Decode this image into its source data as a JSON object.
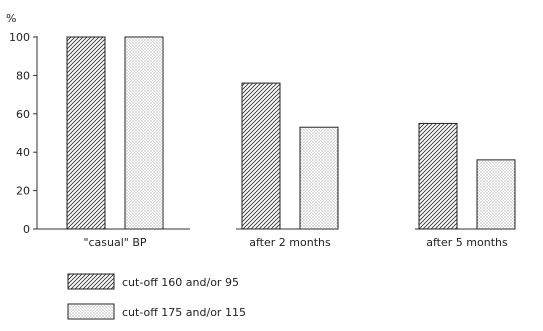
{
  "chart_data": {
    "type": "bar",
    "ylabel": "%",
    "ylim": [
      0,
      100
    ],
    "yticks": [
      0,
      20,
      40,
      60,
      80,
      100
    ],
    "categories": [
      "\"casual\" BP",
      "after 2 months",
      "after 5 months"
    ],
    "series": [
      {
        "name": "cut-off 160 and/or 95",
        "values": [
          100,
          76,
          55
        ],
        "pattern": "diagonal-hatch"
      },
      {
        "name": "cut-off 175 and/or 115",
        "values": [
          100,
          53,
          36
        ],
        "pattern": "dotted"
      }
    ],
    "legend": "bottom-left",
    "grid": false
  }
}
